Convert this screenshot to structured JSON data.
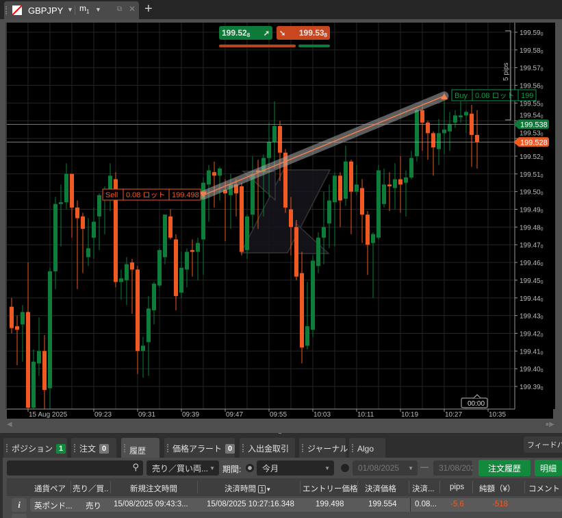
{
  "window": {
    "symbol": "GBPJPY",
    "timeframe": "m",
    "timeframe_sub": "1",
    "new_tab": "+"
  },
  "quotes": {
    "sell": "199.52",
    "sell_sub": "8",
    "buy": "199.53",
    "buy_sub": "8",
    "sell_color": "#0e7a3a",
    "buy_color": "#c9471f",
    "sell_ratio": 0.7
  },
  "chart_data": {
    "type": "candlestick",
    "interval": "1m",
    "start_time": "09:08",
    "colors": {
      "up": "#0d7e3a",
      "down": "#f05a22"
    },
    "y_ticks": [
      {
        "v": "199.59",
        "s": "0"
      },
      {
        "v": "199.58",
        "s": "0"
      },
      {
        "v": "199.57",
        "s": "0"
      },
      {
        "v": "199.56",
        "s": "0"
      },
      {
        "v": "199.55",
        "s": "0"
      },
      {
        "v": "199.54",
        "s": "0"
      },
      {
        "v": "199.53",
        "s": "0"
      },
      {
        "v": "199.52",
        "s": "0"
      },
      {
        "v": "199.51",
        "s": "0"
      },
      {
        "v": "199.50",
        "s": "0"
      },
      {
        "v": "199.49",
        "s": "0"
      },
      {
        "v": "199.48",
        "s": "0"
      },
      {
        "v": "199.47",
        "s": "0"
      },
      {
        "v": "199.46",
        "s": "0"
      },
      {
        "v": "199.45",
        "s": "0"
      },
      {
        "v": "199.44",
        "s": "0"
      },
      {
        "v": "199.43",
        "s": "0"
      },
      {
        "v": "199.42",
        "s": "0"
      },
      {
        "v": "199.41",
        "s": "0"
      },
      {
        "v": "199.40",
        "s": "0"
      },
      {
        "v": "199.39",
        "s": "0"
      }
    ],
    "x_ticks": [
      "15 Aug 2025",
      "09:23",
      "09:31",
      "09:39",
      "09:47",
      "09:55",
      "10:03",
      "10:11",
      "10:19",
      "10:27",
      "10:35"
    ],
    "ylim": [
      199.376,
      199.594
    ],
    "grid": true,
    "ohlc": [
      [
        199.435,
        199.44,
        199.42,
        199.423
      ],
      [
        199.424,
        199.43,
        199.402,
        199.422
      ],
      [
        199.425,
        199.436,
        199.404,
        199.432
      ],
      [
        199.432,
        199.46,
        199.37,
        199.378
      ],
      [
        199.378,
        199.411,
        199.37,
        199.404
      ],
      [
        199.403,
        199.429,
        199.396,
        199.41
      ],
      [
        199.41,
        199.419,
        199.37,
        199.388
      ],
      [
        199.389,
        199.457,
        199.372,
        199.455
      ],
      [
        199.455,
        199.497,
        199.445,
        199.493
      ],
      [
        199.493,
        199.504,
        199.469,
        199.494
      ],
      [
        199.494,
        199.516,
        199.49,
        199.51
      ],
      [
        199.51,
        199.51,
        199.474,
        199.491
      ],
      [
        199.491,
        199.495,
        199.445,
        199.485
      ],
      [
        199.486,
        199.488,
        199.454,
        199.479
      ],
      [
        199.463,
        199.485,
        199.458,
        199.468
      ],
      [
        199.474,
        199.491,
        199.462,
        199.483
      ],
      [
        199.486,
        199.499,
        199.467,
        199.498
      ],
      [
        199.496,
        199.503,
        199.476,
        199.497
      ],
      [
        199.497,
        199.516,
        199.489,
        199.509
      ],
      [
        199.507,
        199.511,
        199.446,
        199.449
      ],
      [
        199.449,
        199.456,
        199.439,
        199.451
      ],
      [
        199.45,
        199.463,
        199.436,
        199.459
      ],
      [
        199.46,
        199.462,
        199.431,
        199.456
      ],
      [
        199.456,
        199.458,
        199.397,
        199.41
      ],
      [
        199.41,
        199.418,
        199.395,
        199.413
      ],
      [
        199.415,
        199.441,
        199.396,
        199.434
      ],
      [
        199.433,
        199.449,
        199.425,
        199.448
      ],
      [
        199.447,
        199.468,
        199.446,
        199.467
      ],
      [
        199.463,
        199.487,
        199.459,
        199.487
      ],
      [
        199.486,
        199.49,
        199.473,
        199.474
      ],
      [
        199.473,
        199.476,
        199.433,
        199.441
      ],
      [
        199.443,
        199.466,
        199.44,
        199.457
      ],
      [
        199.456,
        199.468,
        199.446,
        199.466
      ],
      [
        199.467,
        199.473,
        199.452,
        199.466
      ],
      [
        199.466,
        199.474,
        199.45,
        199.471
      ],
      [
        199.473,
        199.508,
        199.453,
        199.505
      ],
      [
        199.504,
        199.515,
        199.483,
        199.512
      ],
      [
        199.511,
        199.517,
        199.491,
        199.509
      ],
      [
        199.509,
        199.514,
        199.495,
        199.513
      ],
      [
        199.501,
        199.507,
        199.472,
        199.499
      ],
      [
        199.498,
        199.51,
        199.479,
        199.504
      ],
      [
        199.504,
        199.507,
        199.486,
        199.499
      ],
      [
        199.503,
        199.505,
        199.464,
        199.466
      ],
      [
        199.467,
        199.487,
        199.462,
        199.486
      ],
      [
        199.487,
        199.52,
        199.479,
        199.51
      ],
      [
        199.512,
        199.518,
        199.479,
        199.511
      ],
      [
        199.511,
        199.521,
        199.486,
        199.519
      ],
      [
        199.519,
        199.539,
        199.497,
        199.528
      ],
      [
        199.528,
        199.551,
        199.513,
        199.537
      ],
      [
        199.537,
        199.54,
        199.506,
        199.522
      ],
      [
        199.522,
        199.524,
        199.488,
        199.491
      ],
      [
        199.49,
        199.497,
        199.464,
        199.48
      ],
      [
        199.48,
        199.484,
        199.45,
        199.452
      ],
      [
        199.454,
        199.466,
        199.403,
        199.412
      ],
      [
        199.413,
        199.449,
        199.411,
        199.424
      ],
      [
        199.422,
        199.464,
        199.418,
        199.461
      ],
      [
        199.458,
        199.477,
        199.454,
        199.474
      ],
      [
        199.474,
        199.5,
        199.459,
        199.48
      ],
      [
        199.482,
        199.504,
        199.468,
        199.495
      ],
      [
        199.494,
        199.511,
        199.469,
        199.509
      ],
      [
        199.509,
        199.511,
        199.48,
        199.495
      ],
      [
        199.496,
        199.526,
        199.492,
        199.517
      ],
      [
        199.517,
        199.518,
        199.476,
        199.5
      ],
      [
        199.5,
        199.515,
        199.498,
        199.504
      ],
      [
        199.502,
        199.507,
        199.471,
        199.487
      ],
      [
        199.487,
        199.489,
        199.453,
        199.47
      ],
      [
        199.471,
        199.477,
        199.44,
        199.476
      ],
      [
        199.474,
        199.515,
        199.473,
        199.512
      ],
      [
        199.493,
        199.513,
        199.491,
        199.504
      ],
      [
        199.504,
        199.511,
        199.489,
        199.503
      ],
      [
        199.502,
        199.516,
        199.49,
        199.507
      ],
      [
        199.507,
        199.52,
        199.488,
        199.504
      ],
      [
        199.505,
        199.512,
        199.486,
        199.508
      ],
      [
        199.508,
        199.523,
        199.507,
        199.519
      ],
      [
        199.52,
        199.547,
        199.517,
        199.546
      ],
      [
        199.546,
        199.548,
        199.523,
        199.539
      ],
      [
        199.539,
        199.54,
        199.518,
        199.533
      ],
      [
        199.533,
        199.534,
        199.509,
        199.525
      ],
      [
        199.524,
        199.541,
        199.515,
        199.533
      ],
      [
        199.533,
        199.553,
        199.521,
        199.535
      ],
      [
        199.534,
        199.545,
        199.523,
        199.538
      ],
      [
        199.539,
        199.546,
        199.536,
        199.543
      ],
      [
        199.542,
        199.551,
        199.539,
        199.543
      ],
      [
        199.543,
        199.546,
        199.533,
        199.545
      ],
      [
        199.544,
        199.549,
        199.514,
        199.532
      ],
      [
        199.532,
        199.546,
        199.513,
        199.528
      ]
    ],
    "bid_line": {
      "value": "199.538",
      "color": "#0e7a3a"
    },
    "ask_line": {
      "value": "199.528",
      "color": "#f05a22"
    },
    "range_label": "5 pips",
    "trade": {
      "entry": 199.498,
      "exit": 199.554,
      "entry_index": 35,
      "exit_index": 79
    },
    "sell_tag": {
      "side": "Sell",
      "lots": "0.08 ロット",
      "price": "199.498"
    },
    "buy_tag": {
      "side": "Buy",
      "lots": "0.08 ロット",
      "price": "199"
    },
    "countdown": "00:00"
  },
  "bottom": {
    "tabs": [
      {
        "label": "ポジション",
        "badge": "1"
      },
      {
        "label": "注文",
        "badge": "0"
      },
      {
        "label": "履歴"
      },
      {
        "label": "価格アラート",
        "badge": "0"
      },
      {
        "label": "入出金取引"
      },
      {
        "label": "ジャーナル"
      },
      {
        "label": "Algo"
      }
    ],
    "feedback": "フィードバック",
    "filters": {
      "search_value": "",
      "side": "売り／買い両...",
      "period_label": "期間:",
      "period": "今月",
      "from": "01/08/2025",
      "dash": "—",
      "to": "31/08/202",
      "order_history": "注文履歴",
      "details": "明細"
    },
    "columns": [
      "通貨ペア",
      "売り／買..",
      "新規注文時間",
      "決済時間",
      "エントリー価格",
      "決済価格",
      "決済...",
      "pips",
      "純額（¥）",
      "コメント"
    ],
    "sort_badge": "1",
    "rows": [
      {
        "pair": "英ポンド...",
        "side": "売り",
        "open_time": "15/08/2025 09:43:3...",
        "close_time": "15/08/2025 10:27:16.348",
        "entry": "199.498",
        "close": "199.554",
        "lots": "0.08...",
        "pips": "-5.6",
        "net": "-518",
        "comment": ""
      }
    ],
    "loss_color": "#f05a22"
  }
}
